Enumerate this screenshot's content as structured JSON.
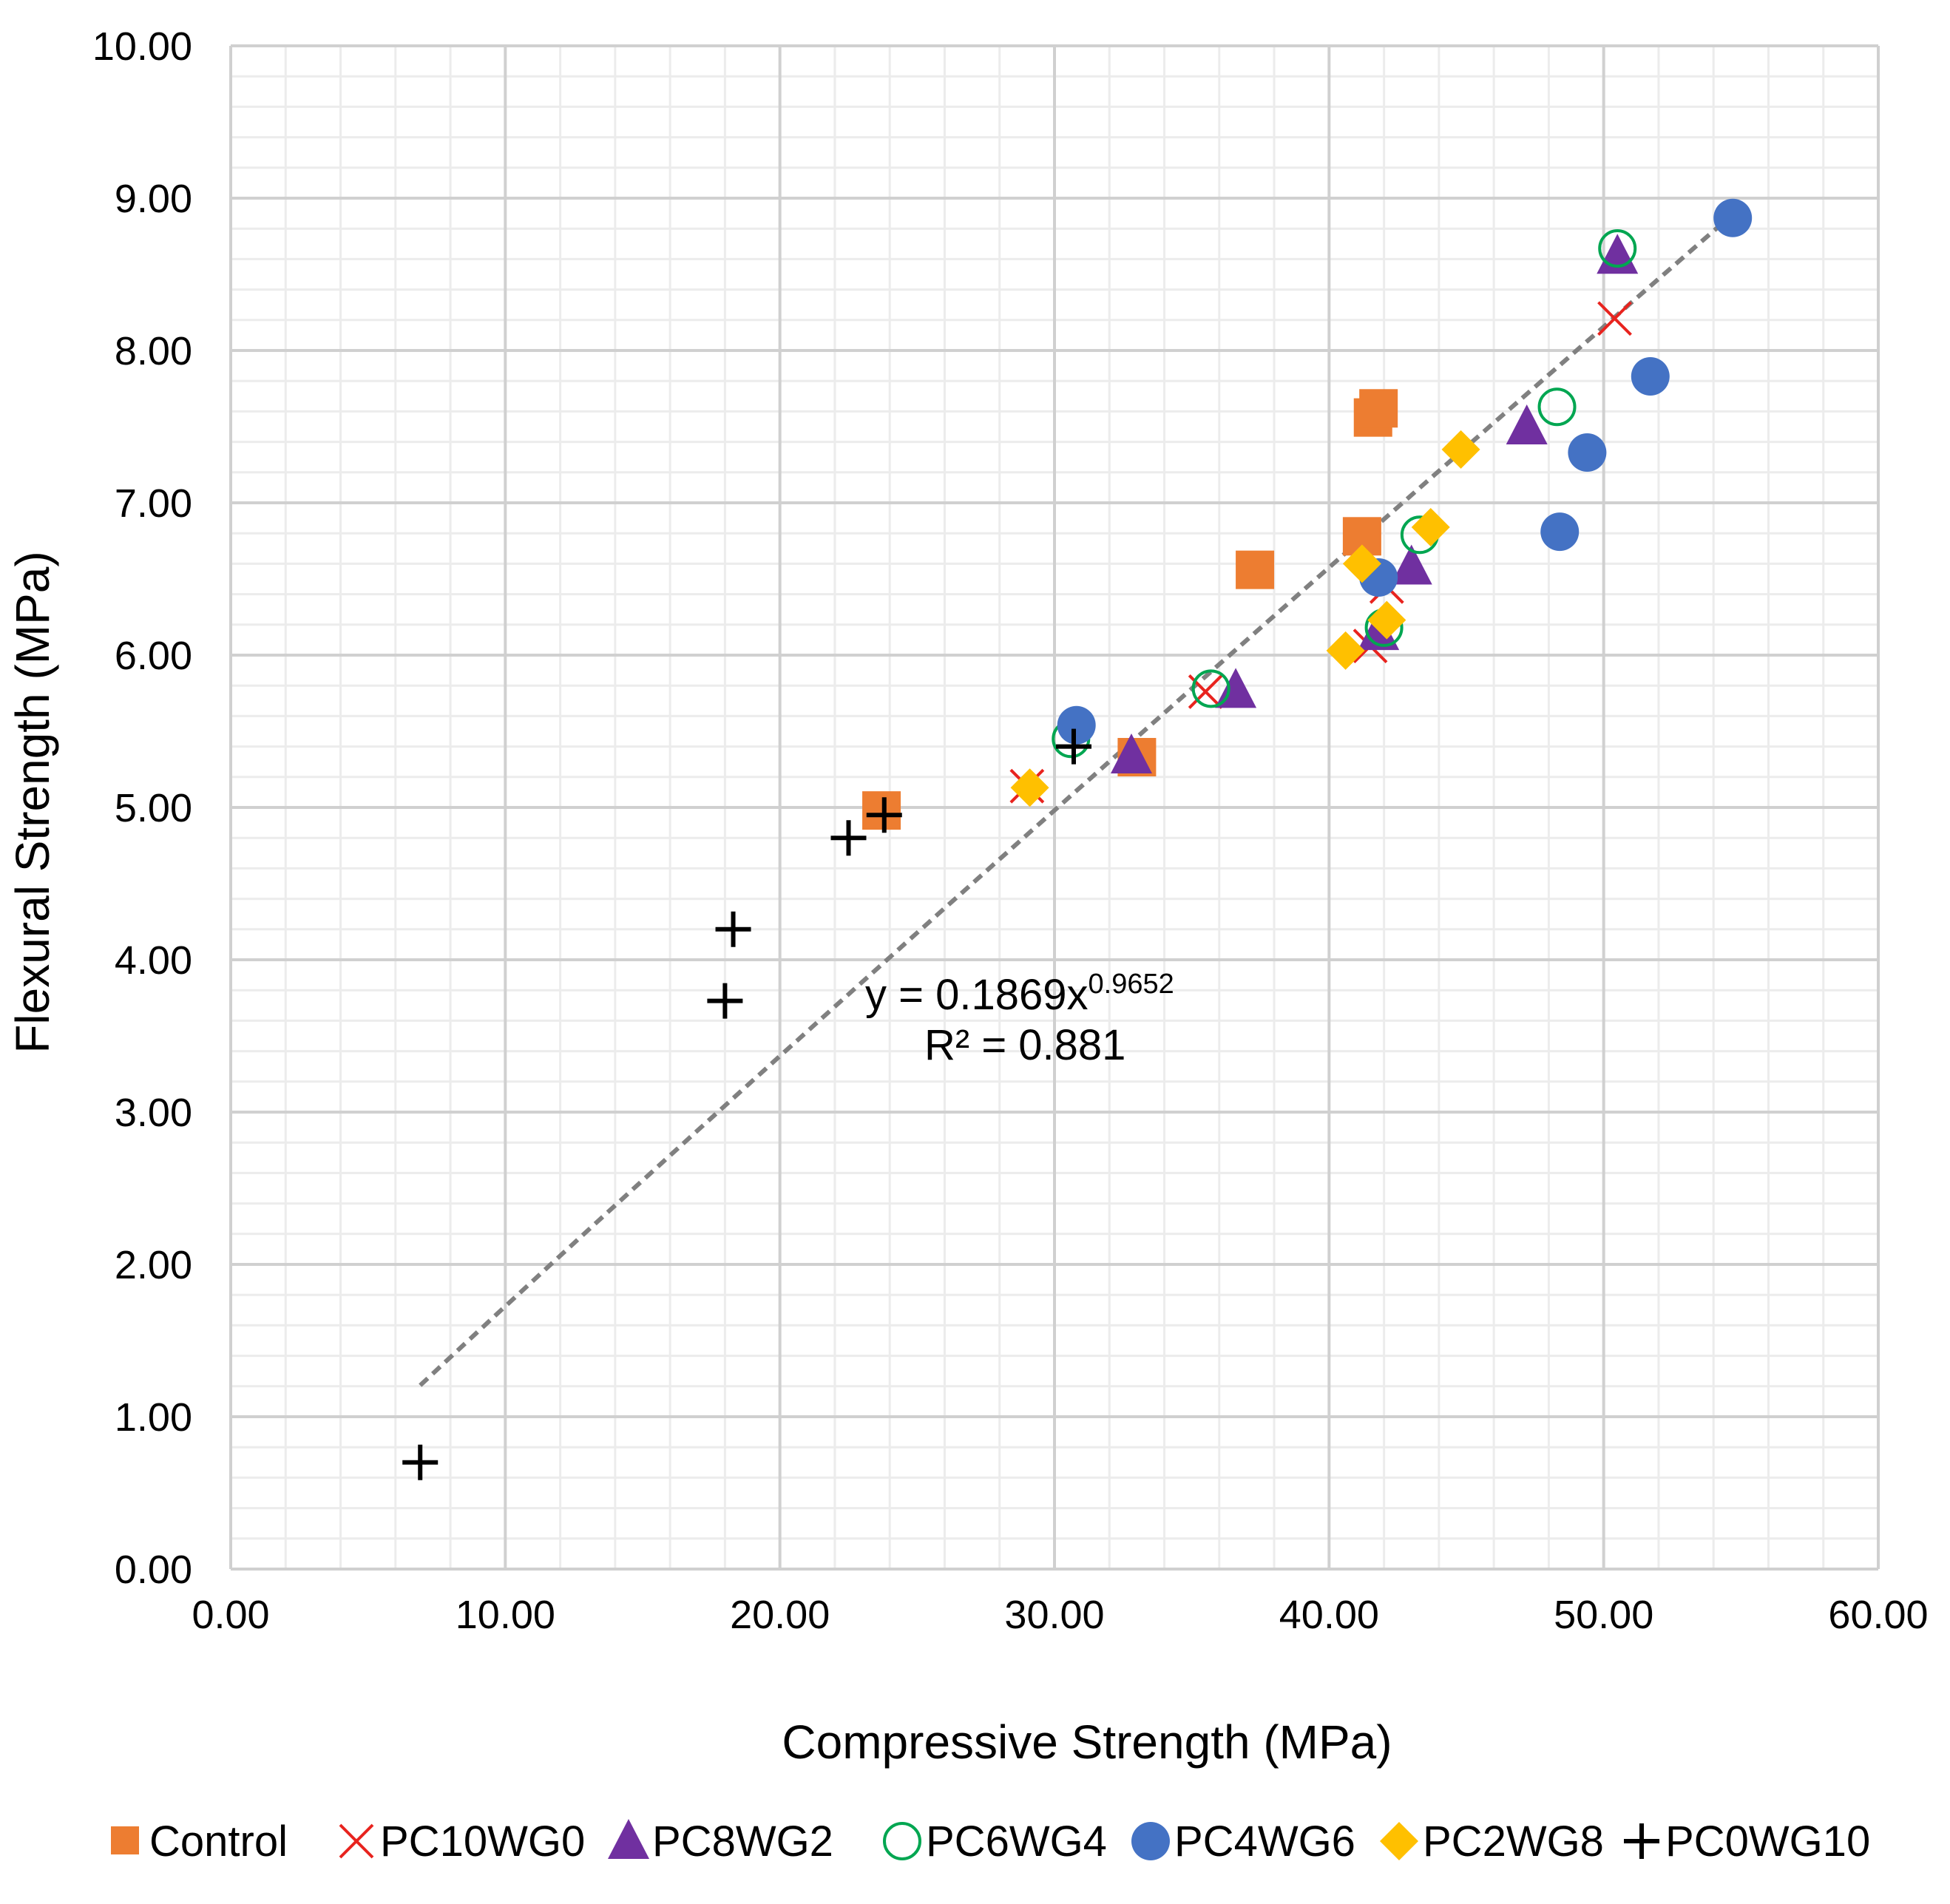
{
  "chart_data": {
    "type": "scatter",
    "xlabel": "Compressive Strength (MPa)",
    "ylabel": "Flexural Strength (MPa)",
    "xlim": [
      0,
      60
    ],
    "ylim": [
      0,
      10
    ],
    "x_major_step": 10,
    "y_major_step": 1,
    "x_minor_step": 2,
    "y_minor_step": 0.2,
    "tick_decimals": 2,
    "grid": true,
    "legend_position": "bottom",
    "trendline": {
      "type": "power",
      "coefficient": 0.1869,
      "exponent": 0.9652,
      "x_range": [
        6.9,
        54.6
      ],
      "color": "#808080",
      "equation_prefix": "y = 0.1869x",
      "equation_exponent": "0.9652",
      "r_squared_label": "R² = 0.881"
    },
    "series": [
      {
        "name": "Control",
        "marker": "square",
        "color": "#ED7D31",
        "points": [
          [
            23.7,
            4.98
          ],
          [
            33.0,
            5.33
          ],
          [
            37.3,
            6.56
          ],
          [
            41.2,
            6.78
          ],
          [
            41.6,
            7.56
          ],
          [
            41.8,
            7.62
          ]
        ]
      },
      {
        "name": "PC10WG0",
        "marker": "x",
        "color": "#E8231E",
        "points": [
          [
            29.0,
            5.14
          ],
          [
            35.5,
            5.76
          ],
          [
            41.5,
            6.06
          ],
          [
            42.1,
            6.45
          ],
          [
            50.4,
            8.21
          ]
        ]
      },
      {
        "name": "PC8WG2",
        "marker": "triangle",
        "color": "#7030A0",
        "points": [
          [
            32.8,
            5.34
          ],
          [
            36.6,
            5.77
          ],
          [
            41.8,
            6.15
          ],
          [
            43.0,
            6.58
          ],
          [
            47.2,
            7.5
          ],
          [
            50.5,
            8.62
          ]
        ]
      },
      {
        "name": "PC6WG4",
        "marker": "circle-open",
        "color": "#00A651",
        "points": [
          [
            30.6,
            5.45
          ],
          [
            35.7,
            5.78
          ],
          [
            42.0,
            6.18
          ],
          [
            43.3,
            6.79
          ],
          [
            48.3,
            7.63
          ],
          [
            50.5,
            8.67
          ]
        ]
      },
      {
        "name": "PC4WG6",
        "marker": "circle",
        "color": "#4472C4",
        "points": [
          [
            30.8,
            5.54
          ],
          [
            41.8,
            6.51
          ],
          [
            48.4,
            6.81
          ],
          [
            49.4,
            7.33
          ],
          [
            51.7,
            7.83
          ],
          [
            54.7,
            8.87
          ]
        ]
      },
      {
        "name": "PC2WG8",
        "marker": "diamond",
        "color": "#FFC000",
        "points": [
          [
            29.1,
            5.13
          ],
          [
            40.6,
            6.03
          ],
          [
            41.2,
            6.6
          ],
          [
            42.1,
            6.23
          ],
          [
            43.7,
            6.84
          ],
          [
            44.8,
            7.35
          ]
        ]
      },
      {
        "name": "PC0WG10",
        "marker": "plus",
        "color": "#000000",
        "points": [
          [
            6.9,
            0.7
          ],
          [
            18.0,
            3.73
          ],
          [
            18.3,
            4.2
          ],
          [
            22.5,
            4.8
          ],
          [
            23.8,
            4.95
          ],
          [
            30.7,
            5.4
          ]
        ]
      }
    ]
  }
}
